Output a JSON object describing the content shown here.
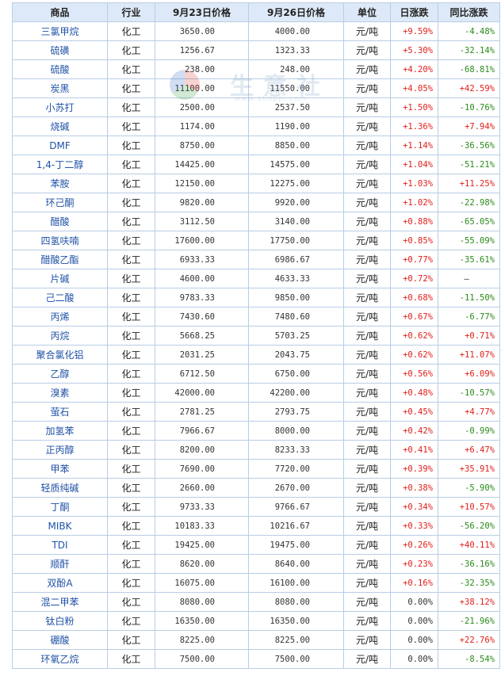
{
  "headers": [
    "商品",
    "行业",
    "9月23日价格",
    "9月26日价格",
    "单位",
    "日涨跌",
    "同比涨跌"
  ],
  "colors": {
    "up": "#e0201b",
    "down": "#2a8a1a",
    "neutral": "#333333",
    "link": "#1f52a6",
    "header_bg": "#dde9f8",
    "border": "#b8cde6"
  },
  "watermark": {
    "text": "生意社",
    "url": "www.100ppi.com"
  },
  "rows": [
    {
      "name": "三氯甲烷",
      "industry": "化工",
      "price1": "3650.00",
      "price2": "4000.00",
      "unit": "元/吨",
      "day": "+9.59%",
      "yoy": "-4.48%"
    },
    {
      "name": "硫磺",
      "industry": "化工",
      "price1": "1256.67",
      "price2": "1323.33",
      "unit": "元/吨",
      "day": "+5.30%",
      "yoy": "-32.14%"
    },
    {
      "name": "硫酸",
      "industry": "化工",
      "price1": "238.00",
      "price2": "248.00",
      "unit": "元/吨",
      "day": "+4.20%",
      "yoy": "-68.81%"
    },
    {
      "name": "炭黑",
      "industry": "化工",
      "price1": "11100.00",
      "price2": "11550.00",
      "unit": "元/吨",
      "day": "+4.05%",
      "yoy": "+42.59%"
    },
    {
      "name": "小苏打",
      "industry": "化工",
      "price1": "2500.00",
      "price2": "2537.50",
      "unit": "元/吨",
      "day": "+1.50%",
      "yoy": "-10.76%"
    },
    {
      "name": "烧碱",
      "industry": "化工",
      "price1": "1174.00",
      "price2": "1190.00",
      "unit": "元/吨",
      "day": "+1.36%",
      "yoy": "+7.94%"
    },
    {
      "name": "DMF",
      "industry": "化工",
      "price1": "8750.00",
      "price2": "8850.00",
      "unit": "元/吨",
      "day": "+1.14%",
      "yoy": "-36.56%"
    },
    {
      "name": "1,4-丁二醇",
      "industry": "化工",
      "price1": "14425.00",
      "price2": "14575.00",
      "unit": "元/吨",
      "day": "+1.04%",
      "yoy": "-51.21%"
    },
    {
      "name": "苯胺",
      "industry": "化工",
      "price1": "12150.00",
      "price2": "12275.00",
      "unit": "元/吨",
      "day": "+1.03%",
      "yoy": "+11.25%"
    },
    {
      "name": "环己酮",
      "industry": "化工",
      "price1": "9820.00",
      "price2": "9920.00",
      "unit": "元/吨",
      "day": "+1.02%",
      "yoy": "-22.98%"
    },
    {
      "name": "醋酸",
      "industry": "化工",
      "price1": "3112.50",
      "price2": "3140.00",
      "unit": "元/吨",
      "day": "+0.88%",
      "yoy": "-65.05%"
    },
    {
      "name": "四氢呋喃",
      "industry": "化工",
      "price1": "17600.00",
      "price2": "17750.00",
      "unit": "元/吨",
      "day": "+0.85%",
      "yoy": "-55.09%"
    },
    {
      "name": "醋酸乙酯",
      "industry": "化工",
      "price1": "6933.33",
      "price2": "6986.67",
      "unit": "元/吨",
      "day": "+0.77%",
      "yoy": "-35.61%"
    },
    {
      "name": "片碱",
      "industry": "化工",
      "price1": "4600.00",
      "price2": "4633.33",
      "unit": "元/吨",
      "day": "+0.72%",
      "yoy": "—"
    },
    {
      "name": "己二酸",
      "industry": "化工",
      "price1": "9783.33",
      "price2": "9850.00",
      "unit": "元/吨",
      "day": "+0.68%",
      "yoy": "-11.50%"
    },
    {
      "name": "丙烯",
      "industry": "化工",
      "price1": "7430.60",
      "price2": "7480.60",
      "unit": "元/吨",
      "day": "+0.67%",
      "yoy": "-6.77%"
    },
    {
      "name": "丙烷",
      "industry": "化工",
      "price1": "5668.25",
      "price2": "5703.25",
      "unit": "元/吨",
      "day": "+0.62%",
      "yoy": "+0.71%"
    },
    {
      "name": "聚合氯化铝",
      "industry": "化工",
      "price1": "2031.25",
      "price2": "2043.75",
      "unit": "元/吨",
      "day": "+0.62%",
      "yoy": "+11.07%"
    },
    {
      "name": "乙醇",
      "industry": "化工",
      "price1": "6712.50",
      "price2": "6750.00",
      "unit": "元/吨",
      "day": "+0.56%",
      "yoy": "+6.09%"
    },
    {
      "name": "溴素",
      "industry": "化工",
      "price1": "42000.00",
      "price2": "42200.00",
      "unit": "元/吨",
      "day": "+0.48%",
      "yoy": "-10.57%"
    },
    {
      "name": "萤石",
      "industry": "化工",
      "price1": "2781.25",
      "price2": "2793.75",
      "unit": "元/吨",
      "day": "+0.45%",
      "yoy": "+4.77%"
    },
    {
      "name": "加氢苯",
      "industry": "化工",
      "price1": "7966.67",
      "price2": "8000.00",
      "unit": "元/吨",
      "day": "+0.42%",
      "yoy": "-0.99%"
    },
    {
      "name": "正丙醇",
      "industry": "化工",
      "price1": "8200.00",
      "price2": "8233.33",
      "unit": "元/吨",
      "day": "+0.41%",
      "yoy": "+6.47%"
    },
    {
      "name": "甲苯",
      "industry": "化工",
      "price1": "7690.00",
      "price2": "7720.00",
      "unit": "元/吨",
      "day": "+0.39%",
      "yoy": "+35.91%"
    },
    {
      "name": "轻质纯碱",
      "industry": "化工",
      "price1": "2660.00",
      "price2": "2670.00",
      "unit": "元/吨",
      "day": "+0.38%",
      "yoy": "-5.90%"
    },
    {
      "name": "丁酮",
      "industry": "化工",
      "price1": "9733.33",
      "price2": "9766.67",
      "unit": "元/吨",
      "day": "+0.34%",
      "yoy": "+10.57%"
    },
    {
      "name": "MIBK",
      "industry": "化工",
      "price1": "10183.33",
      "price2": "10216.67",
      "unit": "元/吨",
      "day": "+0.33%",
      "yoy": "-56.20%"
    },
    {
      "name": "TDI",
      "industry": "化工",
      "price1": "19425.00",
      "price2": "19475.00",
      "unit": "元/吨",
      "day": "+0.26%",
      "yoy": "+40.11%"
    },
    {
      "name": "顺酐",
      "industry": "化工",
      "price1": "8620.00",
      "price2": "8640.00",
      "unit": "元/吨",
      "day": "+0.23%",
      "yoy": "-36.16%"
    },
    {
      "name": "双酚A",
      "industry": "化工",
      "price1": "16075.00",
      "price2": "16100.00",
      "unit": "元/吨",
      "day": "+0.16%",
      "yoy": "-32.35%"
    },
    {
      "name": "混二甲苯",
      "industry": "化工",
      "price1": "8080.00",
      "price2": "8080.00",
      "unit": "元/吨",
      "day": "0.00%",
      "yoy": "+38.12%"
    },
    {
      "name": "钛白粉",
      "industry": "化工",
      "price1": "16350.00",
      "price2": "16350.00",
      "unit": "元/吨",
      "day": "0.00%",
      "yoy": "-21.96%"
    },
    {
      "name": "硼酸",
      "industry": "化工",
      "price1": "8225.00",
      "price2": "8225.00",
      "unit": "元/吨",
      "day": "0.00%",
      "yoy": "+22.76%"
    },
    {
      "name": "环氧乙烷",
      "industry": "化工",
      "price1": "7500.00",
      "price2": "7500.00",
      "unit": "元/吨",
      "day": "0.00%",
      "yoy": "-8.54%"
    }
  ]
}
